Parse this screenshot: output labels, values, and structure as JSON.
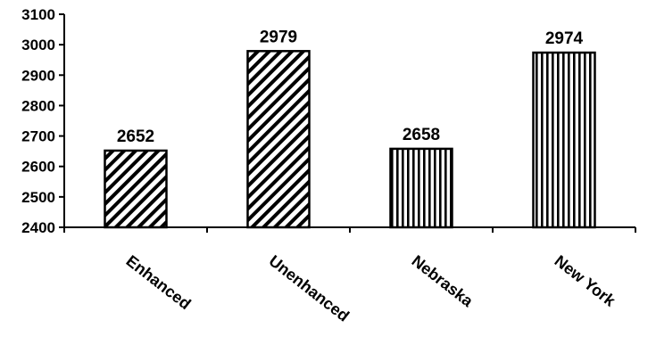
{
  "chart_data": {
    "type": "bar",
    "categories": [
      "Enhanced",
      "Unenhanced",
      "Nebraska",
      "New York"
    ],
    "values": [
      2652,
      2979,
      2658,
      2974
    ],
    "data_labels": [
      "2652",
      "2979",
      "2658",
      "2974"
    ],
    "title": "",
    "xlabel": "",
    "ylabel": "",
    "ylim": [
      2400,
      3100
    ],
    "yticks": [
      2400,
      2500,
      2600,
      2700,
      2800,
      2900,
      3000,
      3100
    ],
    "ytick_labels": [
      "2400",
      "2500",
      "2600",
      "2700",
      "2800",
      "2900",
      "3000",
      "3100"
    ],
    "grid": false,
    "legend": "none",
    "bar_patterns": [
      "diagonal-hatch",
      "diagonal-hatch",
      "vertical-stripes",
      "vertical-stripes"
    ],
    "colors": {
      "bar_ink": "#000000",
      "background": "#ffffff"
    }
  }
}
